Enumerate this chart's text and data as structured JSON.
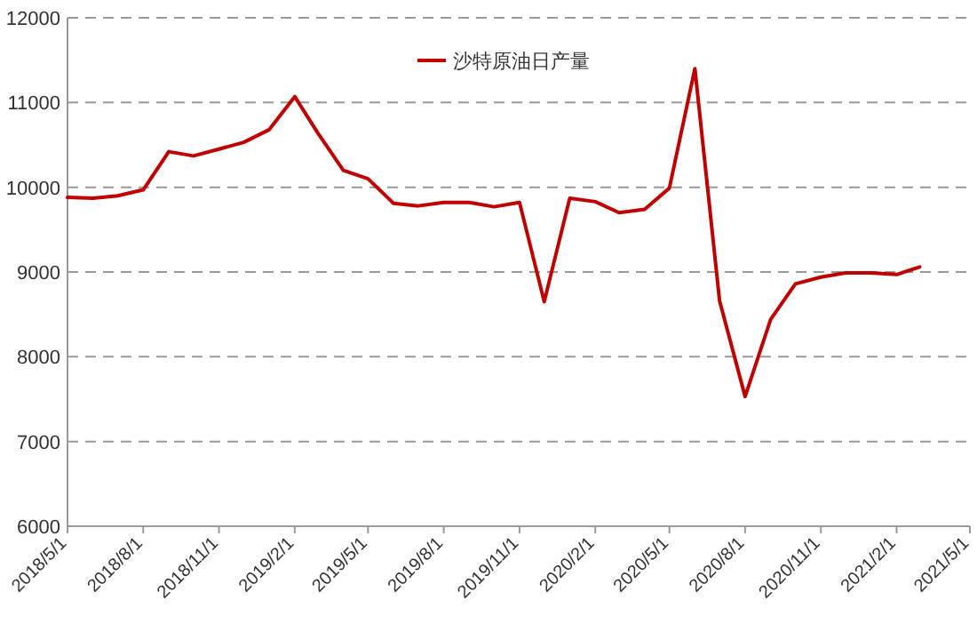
{
  "chart_data": {
    "type": "line",
    "legend": "top",
    "grid": "y",
    "line_style": "solid",
    "marker": "none",
    "x": [
      "2018-05",
      "2018-06",
      "2018-07",
      "2018-08",
      "2018-09",
      "2018-10",
      "2018-11",
      "2018-12",
      "2019-01",
      "2019-02",
      "2019-03",
      "2019-04",
      "2019-05",
      "2019-06",
      "2019-07",
      "2019-08",
      "2019-09",
      "2019-10",
      "2019-11",
      "2019-12",
      "2020-01",
      "2020-02",
      "2020-03",
      "2020-04",
      "2020-05",
      "2020-06",
      "2020-07",
      "2020-08",
      "2020-09",
      "2020-10",
      "2020-11",
      "2020-12",
      "2021-01",
      "2021-02",
      "2021-03"
    ],
    "series": [
      {
        "name": "沙特原油日产量",
        "color": "#c00000",
        "values": [
          9880,
          9870,
          9900,
          9970,
          10420,
          10370,
          10450,
          10530,
          10680,
          11070,
          10640,
          10200,
          10100,
          9810,
          9780,
          9820,
          9820,
          9770,
          9820,
          8650,
          9870,
          9830,
          9700,
          9740,
          9990,
          11400,
          8660,
          7530,
          8440,
          8860,
          8940,
          8990,
          8990,
          8970,
          9060
        ]
      }
    ],
    "xlim": [
      "2018-05-01",
      "2021-05-01"
    ],
    "xticks": [
      {
        "value": "2018-05-01",
        "label": "2018/5/1"
      },
      {
        "value": "2018-08-01",
        "label": "2018/8/1"
      },
      {
        "value": "2018-11-01",
        "label": "2018/11/1"
      },
      {
        "value": "2019-02-01",
        "label": "2019/2/1"
      },
      {
        "value": "2019-05-01",
        "label": "2019/5/1"
      },
      {
        "value": "2019-08-01",
        "label": "2019/8/1"
      },
      {
        "value": "2019-11-01",
        "label": "2019/11/1"
      },
      {
        "value": "2020-02-01",
        "label": "2020/2/1"
      },
      {
        "value": "2020-05-01",
        "label": "2020/5/1"
      },
      {
        "value": "2020-08-01",
        "label": "2020/8/1"
      },
      {
        "value": "2020-11-01",
        "label": "2020/11/1"
      },
      {
        "value": "2021-02-01",
        "label": "2021/2/1"
      },
      {
        "value": "2021-05-01",
        "label": "2021/5/1"
      }
    ],
    "ylim": [
      6000,
      12000
    ],
    "yticks": [
      6000,
      7000,
      8000,
      9000,
      10000,
      11000,
      12000
    ]
  }
}
